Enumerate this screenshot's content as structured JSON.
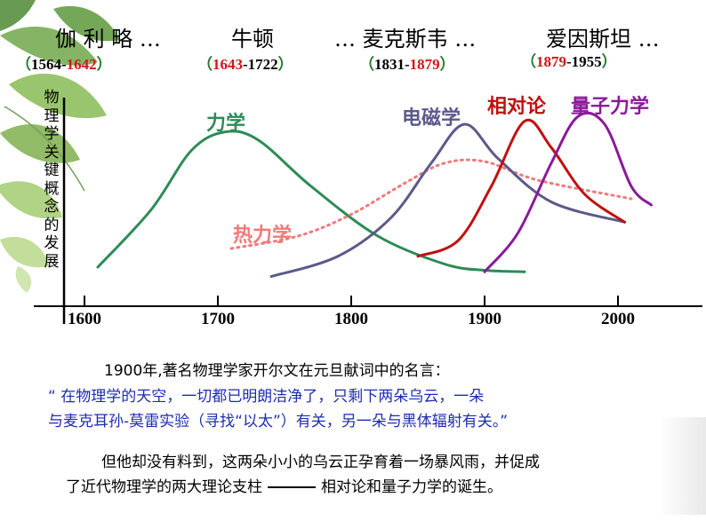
{
  "scientists": [
    {
      "name": "伽 利 略 …",
      "years": [
        "1564-",
        "1642"
      ],
      "colors": [
        "blk",
        "red"
      ]
    },
    {
      "name": "牛顿",
      "years": [
        "1643",
        "-1722"
      ],
      "colors": [
        "red",
        "blk"
      ]
    },
    {
      "name": "…  麦克斯韦 …",
      "years": [
        "1831-",
        "1879"
      ],
      "colors": [
        "blk",
        "red"
      ]
    },
    {
      "name": "爱因斯坦 …",
      "years": [
        "1879",
        "-1955"
      ],
      "colors": [
        "red",
        "blk"
      ]
    }
  ],
  "paren_open": "（",
  "paren_close": "）",
  "y_axis_label": "物理学关键概念的发展",
  "chart_data": {
    "type": "line",
    "x_ticks": [
      "1600",
      "1700",
      "1800",
      "1900",
      "2000"
    ],
    "xlim": [
      1590,
      2030
    ],
    "series": [
      {
        "name": "力学",
        "color": "#2e8b57",
        "style": "solid",
        "x": [
          1610,
          1650,
          1680,
          1705,
          1730,
          1770,
          1820,
          1870,
          1900,
          1930
        ],
        "y": [
          0.08,
          0.45,
          0.83,
          0.95,
          0.9,
          0.6,
          0.28,
          0.1,
          0.06,
          0.05
        ]
      },
      {
        "name": "热力学",
        "color": "#f07a7a",
        "style": "dotted",
        "x": [
          1710,
          1760,
          1800,
          1840,
          1870,
          1900,
          1940,
          2010
        ],
        "y": [
          0.2,
          0.28,
          0.42,
          0.62,
          0.75,
          0.76,
          0.64,
          0.52
        ]
      },
      {
        "name": "电磁学",
        "color": "#5a5a8a",
        "style": "solid",
        "x": [
          1740,
          1790,
          1830,
          1860,
          1885,
          1910,
          1950,
          2005
        ],
        "y": [
          0.02,
          0.15,
          0.4,
          0.75,
          1.0,
          0.78,
          0.5,
          0.37
        ]
      },
      {
        "name": "相对论",
        "color": "#c01010",
        "style": "solid",
        "x": [
          1850,
          1880,
          1905,
          1930,
          1950,
          1975,
          2005
        ],
        "y": [
          0.15,
          0.25,
          0.6,
          1.02,
          0.85,
          0.55,
          0.37
        ]
      },
      {
        "name": "量子力学",
        "color": "#8a1a9a",
        "style": "solid",
        "x": [
          1900,
          1925,
          1950,
          1970,
          1990,
          2010,
          2025
        ],
        "y": [
          0.05,
          0.3,
          0.75,
          1.05,
          1.0,
          0.6,
          0.48
        ]
      }
    ]
  },
  "text": {
    "line1": "1900年,著名物理学家开尔文在元旦献词中的名言：",
    "quote1": "“ 在物理学的天空，一切都已明朗洁净了，只剩下两朵乌云，一朵",
    "quote2": "与麦克耳孙-莫雷实验（寻找“以太”）有关，另一朵与黑体辐射有关。”",
    "body1": "但他却没有料到，这两朵小小的乌云正孕育着一场暴风雨，并促成",
    "body2_a": "了近代物理学的两大理论支柱",
    "body2_b": "相对论和量子力学的诞生。"
  }
}
